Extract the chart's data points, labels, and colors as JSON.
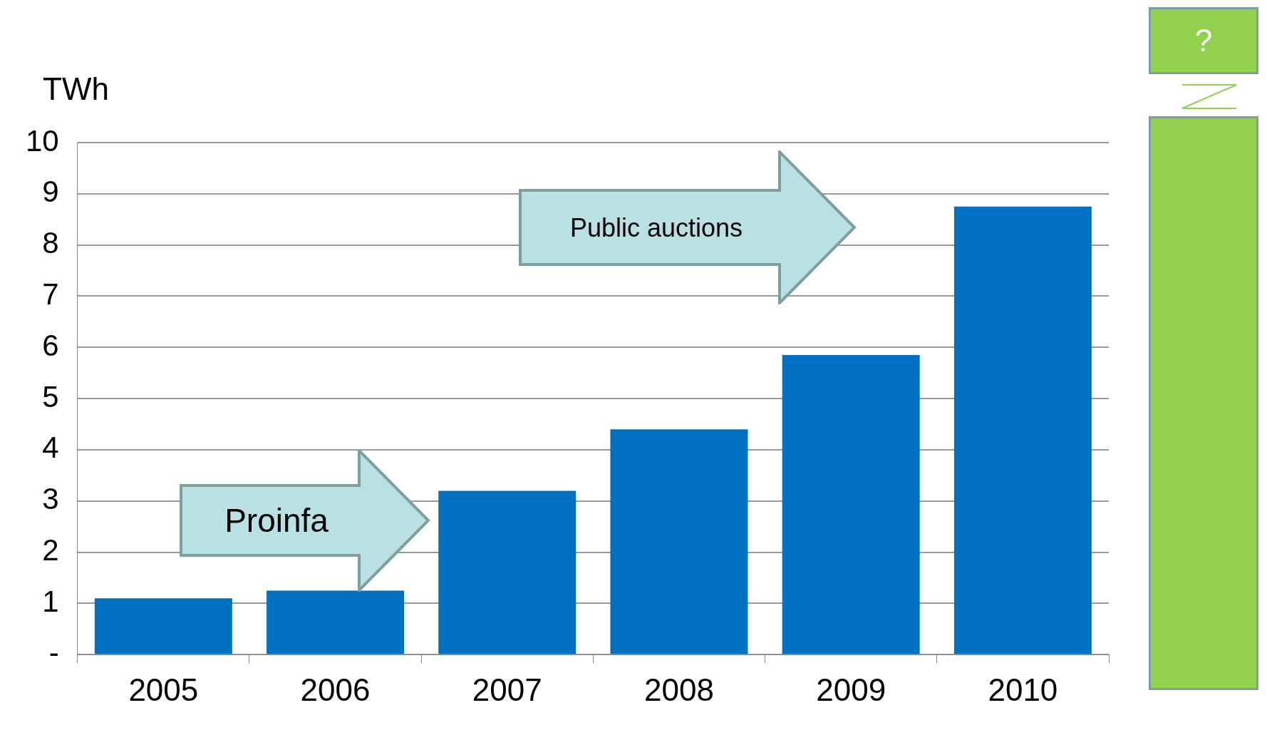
{
  "chart_data": {
    "type": "bar",
    "ylabel": "TWh",
    "categories": [
      "2005",
      "2006",
      "2007",
      "2008",
      "2009",
      "2010"
    ],
    "values": [
      1.1,
      1.25,
      3.2,
      4.4,
      5.85,
      8.75
    ],
    "color": "#0070c0",
    "ylim": [
      0,
      10
    ],
    "yticks": [
      {
        "value": 0,
        "label": "-"
      },
      1,
      2,
      3,
      4,
      5,
      6,
      7,
      8,
      9,
      10
    ],
    "grid": "y",
    "annotations": [
      "Proinfa",
      "Public auctions",
      "?"
    ]
  }
}
